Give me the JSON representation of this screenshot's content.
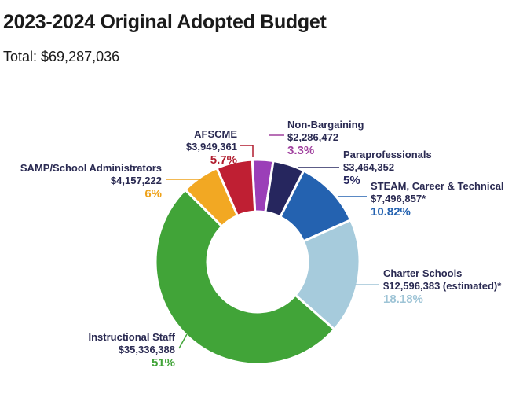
{
  "header": {
    "title": "2023-2024 Original Adopted Budget",
    "total": "Total: $69,287,036"
  },
  "chart_data": {
    "type": "pie",
    "donut": true,
    "title": "2023-2024 Original Adopted Budget",
    "subtitle": "Total: $69,287,036",
    "total": 69287036,
    "slices": [
      {
        "name": "Non-Bargaining",
        "value": 2286472,
        "value_label": "$2,286,472",
        "percent": 3.3,
        "percent_label": "3.3%",
        "color": "#9b3fb8",
        "pct_color": "#a0409e"
      },
      {
        "name": "Paraprofessionals",
        "value": 3464352,
        "value_label": "$3,464,352",
        "percent": 5,
        "percent_label": "5%",
        "color": "#26265e",
        "pct_color": "#26265e"
      },
      {
        "name": "STEAM, Career & Technical",
        "value": 7496857,
        "value_label": "$7,496,857*",
        "percent": 10.82,
        "percent_label": "10.82%",
        "color": "#2462b0",
        "pct_color": "#2462b0"
      },
      {
        "name": "Charter Schools",
        "value": 12596383,
        "value_label": "$12,596,383 (estimated)*",
        "percent": 18.18,
        "percent_label": "18.18%",
        "color": "#a6cbdc",
        "pct_color": "#9ec4d6"
      },
      {
        "name": "Instructional Staff",
        "value": 35336388,
        "value_label": "$35,336,388",
        "percent": 51,
        "percent_label": "51%",
        "color": "#41a438",
        "pct_color": "#41a438"
      },
      {
        "name": "SAMP/School Administrators",
        "value": 4157222,
        "value_label": "$4,157,222",
        "percent": 6,
        "percent_label": "6%",
        "color": "#f2a823",
        "pct_color": "#eea21a"
      },
      {
        "name": "AFSCME",
        "value": 3949361,
        "value_label": "$3,949,361",
        "percent": 5.7,
        "percent_label": "5.7%",
        "color": "#bf1f33",
        "pct_color": "#b01c2e"
      }
    ]
  }
}
